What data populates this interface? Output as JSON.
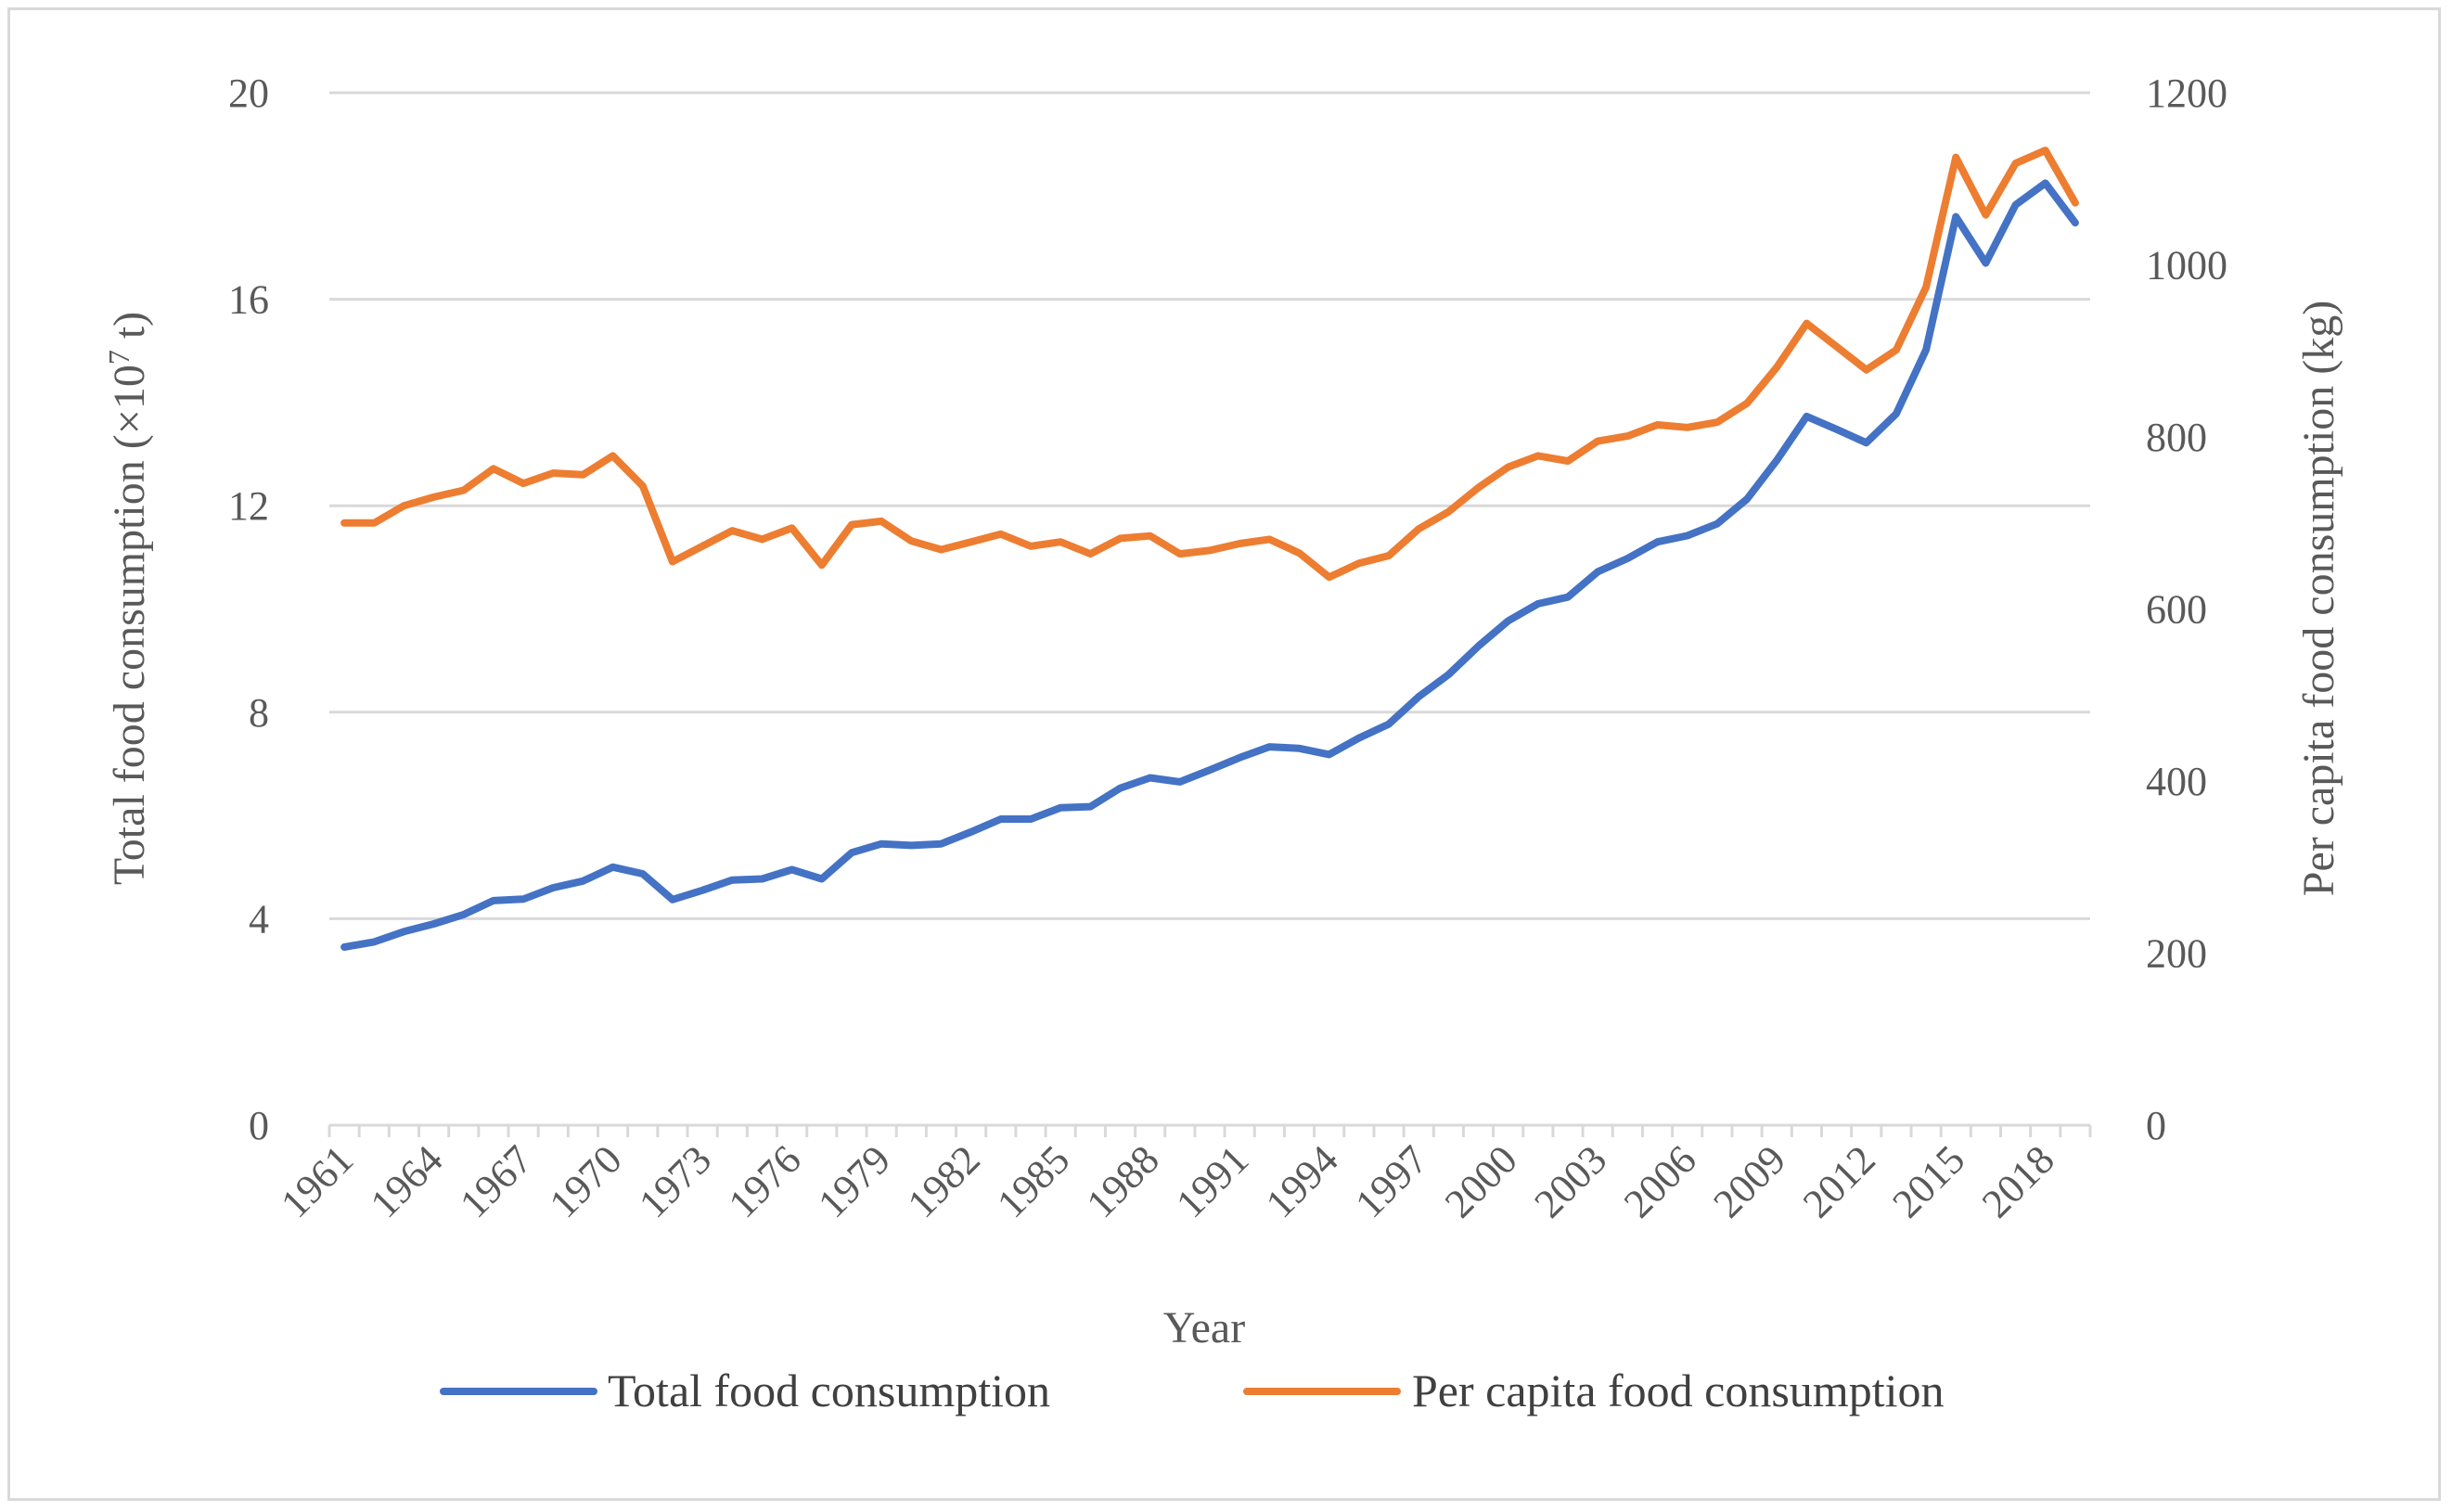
{
  "chart_data": {
    "type": "line",
    "x": [
      1961,
      1962,
      1963,
      1964,
      1965,
      1966,
      1967,
      1968,
      1969,
      1970,
      1971,
      1972,
      1973,
      1974,
      1975,
      1976,
      1977,
      1978,
      1979,
      1980,
      1981,
      1982,
      1983,
      1984,
      1985,
      1986,
      1987,
      1988,
      1989,
      1990,
      1991,
      1992,
      1993,
      1994,
      1995,
      1996,
      1997,
      1998,
      1999,
      2000,
      2001,
      2002,
      2003,
      2004,
      2005,
      2006,
      2007,
      2008,
      2009,
      2010,
      2011,
      2012,
      2013,
      2014,
      2015,
      2016,
      2017,
      2018,
      2019
    ],
    "x_tick_labels": [
      "1961",
      "1964",
      "1967",
      "1970",
      "1973",
      "1976",
      "1979",
      "1982",
      "1985",
      "1988",
      "1991",
      "1994",
      "1997",
      "2000",
      "2003",
      "2006",
      "2009",
      "2012",
      "2015",
      "2018"
    ],
    "xlabel": "Year",
    "ylabel_left": "Total food consumption (×10",
    "ylabel_left_sup": "7",
    "ylabel_left_tail": " t)",
    "ylabel_right": "Per capita food consumption (kg)",
    "ylim_left": [
      0,
      20
    ],
    "yticks_left": [
      "0",
      "4",
      "8",
      "12",
      "16",
      "20"
    ],
    "ylim_right": [
      0,
      1200
    ],
    "yticks_right": [
      "0",
      "200",
      "400",
      "600",
      "800",
      "1000",
      "1200"
    ],
    "grid": true,
    "legend_position": "bottom",
    "series": [
      {
        "name": "Total food consumption",
        "axis": "left",
        "color": "#4472c4",
        "values": [
          3.45,
          3.55,
          3.75,
          3.9,
          4.08,
          4.35,
          4.38,
          4.6,
          4.73,
          5.0,
          4.87,
          4.37,
          4.55,
          4.75,
          4.77,
          4.95,
          4.77,
          5.28,
          5.45,
          5.42,
          5.45,
          5.68,
          5.93,
          5.93,
          6.15,
          6.17,
          6.53,
          6.73,
          6.65,
          6.88,
          7.12,
          7.33,
          7.3,
          7.18,
          7.5,
          7.77,
          8.3,
          8.73,
          9.28,
          9.77,
          10.1,
          10.23,
          10.72,
          10.98,
          11.3,
          11.42,
          11.65,
          12.13,
          12.88,
          13.73,
          13.48,
          13.22,
          13.78,
          15.02,
          17.6,
          16.7,
          17.83,
          18.25,
          17.48
        ]
      },
      {
        "name": "Per capita food consumption",
        "axis": "right",
        "color": "#ed7d31",
        "values": [
          700,
          700,
          720,
          730,
          738,
          763,
          746,
          758,
          756,
          778,
          743,
          655,
          673,
          691,
          681,
          694,
          651,
          698,
          702,
          679,
          669,
          678,
          687,
          673,
          678,
          664,
          682,
          685,
          664,
          668,
          676,
          681,
          665,
          637,
          653,
          662,
          693,
          713,
          741,
          765,
          778,
          772,
          795,
          801,
          814,
          811,
          817,
          839,
          881,
          932,
          905,
          878,
          901,
          974,
          1125,
          1058,
          1118,
          1133,
          1072
        ]
      }
    ]
  }
}
